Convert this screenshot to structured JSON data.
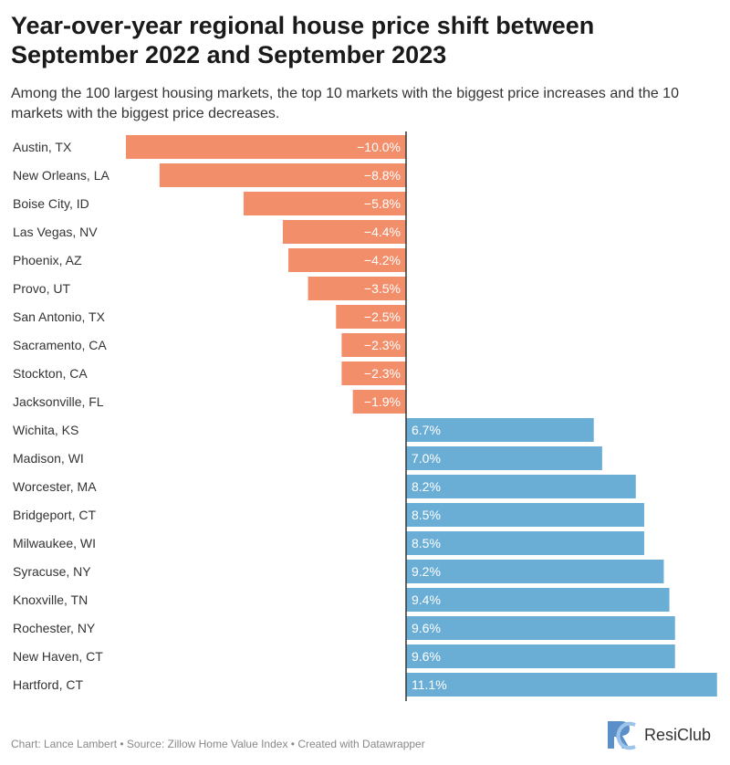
{
  "title": "Year-over-year regional house price shift between September 2022 and September 2023",
  "subtitle": "Among the 100 largest housing markets, the top 10 markets with the biggest price increases and the 10 markets with the biggest price decreases.",
  "footer": "Chart: Lance Lambert • Source: Zillow Home Value Index • Created with Datawrapper",
  "logo": {
    "name": "ResiClub",
    "icon": "rc-logo-icon"
  },
  "colors": {
    "negative": "#f28e6a",
    "positive": "#6aaed6",
    "axis": "#333333",
    "label": "#333333"
  },
  "chart_data": {
    "type": "bar",
    "orientation": "horizontal",
    "unit": "%",
    "xlim": [
      -10.5,
      11.1
    ],
    "categories": [
      "Austin, TX",
      "New Orleans, LA",
      "Boise City, ID",
      "Las Vegas, NV",
      "Phoenix, AZ",
      "Provo, UT",
      "San Antonio, TX",
      "Sacramento, CA",
      "Stockton, CA",
      "Jacksonville, FL",
      "Wichita, KS",
      "Madison, WI",
      "Worcester, MA",
      "Bridgeport, CT",
      "Milwaukee, WI",
      "Syracuse, NY",
      "Knoxville, TN",
      "Rochester, NY",
      "New Haven, CT",
      "Hartford, CT"
    ],
    "values": [
      -10.0,
      -8.8,
      -5.8,
      -4.4,
      -4.2,
      -3.5,
      -2.5,
      -2.3,
      -2.3,
      -1.9,
      6.7,
      7.0,
      8.2,
      8.5,
      8.5,
      9.2,
      9.4,
      9.6,
      9.6,
      11.1
    ],
    "value_labels": [
      "−10.0%",
      "−8.8%",
      "−5.8%",
      "−4.4%",
      "−4.2%",
      "−3.5%",
      "−2.5%",
      "−2.3%",
      "−2.3%",
      "−1.9%",
      "6.7%",
      "7.0%",
      "8.2%",
      "8.5%",
      "8.5%",
      "9.2%",
      "9.4%",
      "9.6%",
      "9.6%",
      "11.1%"
    ]
  }
}
